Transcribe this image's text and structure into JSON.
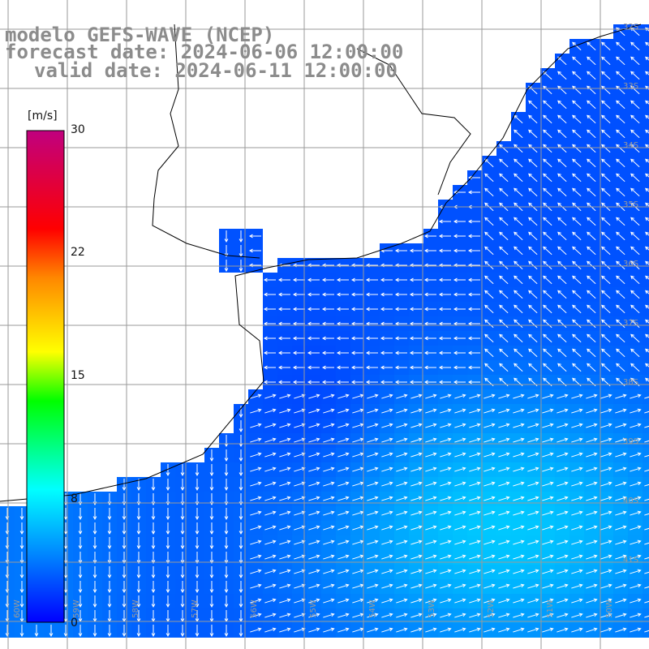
{
  "title": {
    "line1": "modelo GEFS-WAVE (NCEP)",
    "line2": "forecast date: 2024-06-06 12:00:00",
    "line3": "valid date: 2024-06-11 12:00:00"
  },
  "colorbar": {
    "unit": "[m/s]",
    "ticks": [
      "30",
      "22",
      "15",
      "8",
      "0"
    ],
    "tick_values": [
      30,
      22,
      15,
      8,
      0
    ],
    "range": [
      0,
      30
    ],
    "colors": [
      "#0000ff",
      "#0088ff",
      "#00ffff",
      "#00ff00",
      "#ffff00",
      "#ff8800",
      "#ff0000",
      "#c0007f"
    ]
  },
  "latitude_labels": [
    "32S",
    "33S",
    "34S",
    "35S",
    "36S",
    "37S",
    "38S",
    "39S",
    "40S",
    "41S"
  ],
  "longitude_labels": [
    "60W",
    "59W",
    "58W",
    "57W",
    "56W",
    "55W",
    "54W",
    "53W",
    "52W",
    "51W",
    "50W"
  ],
  "map": {
    "field": "wind speed and direction",
    "land_color": "#ffffff",
    "grid_color": "#9a9a9a",
    "coast_color": "#000000",
    "arrow_color": "#ffffff"
  }
}
